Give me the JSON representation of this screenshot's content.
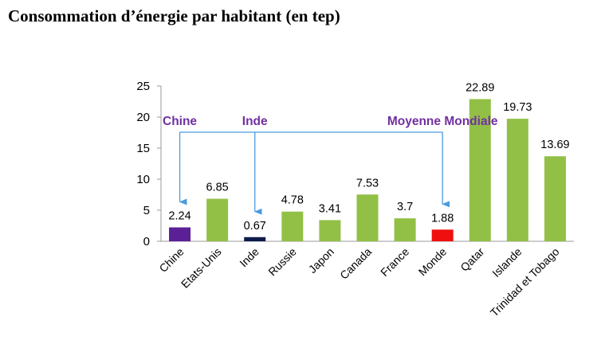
{
  "title": "Consommation d’énergie par habitant (en tep)",
  "chart_data": {
    "type": "bar",
    "title": "Consommation d’énergie par habitant (en tep)",
    "categories": [
      "Chine",
      "Etats-Unis",
      "Inde",
      "Russie",
      "Japon",
      "Canada",
      "France",
      "Monde",
      "Qatar",
      "Islande",
      "Trinidad et Tobago"
    ],
    "values": [
      2.24,
      6.85,
      0.67,
      4.78,
      3.41,
      7.53,
      3.7,
      1.88,
      22.89,
      19.73,
      13.69
    ],
    "value_labels": [
      "2.24",
      "6.85",
      "0.67",
      "4.78",
      "3.41",
      "7.53",
      "3.7",
      "1.88",
      "22.89",
      "19.73",
      "13.69"
    ],
    "colors": [
      "#5b1f96",
      "#92c047",
      "#0d1c4a",
      "#92c047",
      "#92c047",
      "#92c047",
      "#92c047",
      "#ef0f0f",
      "#92c047",
      "#92c047",
      "#92c047"
    ],
    "ylim": [
      0,
      25
    ],
    "yticks": [
      "0",
      "5",
      "10",
      "15",
      "20",
      "25"
    ],
    "xlabel": "",
    "ylabel": "",
    "grid": false,
    "legend": "none",
    "annotations": [
      {
        "text": "Chine",
        "target": "Chine"
      },
      {
        "text": "Inde",
        "target": "Inde"
      },
      {
        "text": "Moyenne Mondiale",
        "target": "Monde"
      }
    ],
    "annotation_color": "#7030a0",
    "arrow_color": "#4a9be0"
  }
}
